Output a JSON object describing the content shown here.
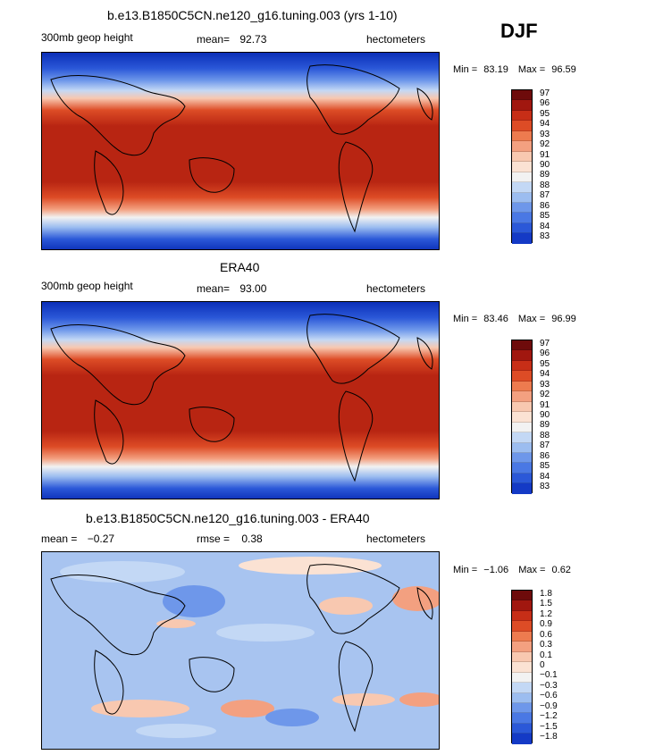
{
  "season": "DJF",
  "colors": {
    "top_warm": [
      "#6e0b0b",
      "#a1170f",
      "#c72e17",
      "#dd4c26",
      "#ed7b4f",
      "#f3a080",
      "#f8c8b0",
      "#fbe2d3"
    ],
    "top_mid": "#f2f2f2",
    "top_cool": [
      "#c3d8f5",
      "#9cbdf0",
      "#6e97ea",
      "#4a78e4",
      "#2b58d8",
      "#143ac6",
      "#0a22a8",
      "#05106e"
    ],
    "map_line": "#000000"
  },
  "chart_data": [
    {
      "type": "heatmap",
      "title": "b.e13.B1850C5CN.ne120_g16.tuning.003 (yrs 1-10)",
      "variable": "300mb geop height",
      "mean_label": "mean=",
      "mean": "92.73",
      "units": "hectometers",
      "min_label": "Min =",
      "min": "83.19",
      "max_label": "Max =",
      "max": "96.59",
      "levels": [
        "97",
        "96",
        "95",
        "94",
        "93",
        "92",
        "91",
        "90",
        "89",
        "88",
        "87",
        "86",
        "85",
        "84",
        "83"
      ]
    },
    {
      "type": "heatmap",
      "title": "ERA40",
      "variable": "300mb geop height",
      "mean_label": "mean=",
      "mean": "93.00",
      "units": "hectometers",
      "min_label": "Min =",
      "min": "83.46",
      "max_label": "Max =",
      "max": "96.99",
      "levels": [
        "97",
        "96",
        "95",
        "94",
        "93",
        "92",
        "91",
        "90",
        "89",
        "88",
        "87",
        "86",
        "85",
        "84",
        "83"
      ]
    },
    {
      "type": "heatmap",
      "title": "b.e13.B1850C5CN.ne120_g16.tuning.003 - ERA40",
      "mean_label": "mean =",
      "mean": "−0.27",
      "rmse_label": "rmse =",
      "rmse": "0.38",
      "units": "hectometers",
      "min_label": "Min =",
      "min": "−1.06",
      "max_label": "Max =",
      "max": "0.62",
      "levels": [
        "1.8",
        "1.5",
        "1.2",
        "0.9",
        "0.6",
        "0.3",
        "0.1",
        "0",
        "−0.1",
        "−0.3",
        "−0.6",
        "−0.9",
        "−1.2",
        "−1.5",
        "−1.8"
      ]
    }
  ]
}
